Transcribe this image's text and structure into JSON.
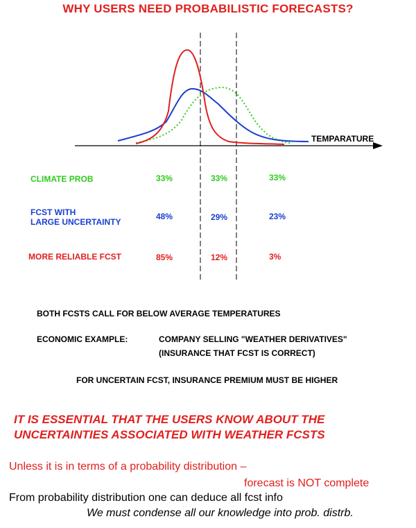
{
  "title": "WHY USERS NEED PROBABILISTIC FORECASTS?",
  "diagram": {
    "axis_label": "TEMPARATURE",
    "curves": [
      {
        "name": "climate",
        "color": "#2ecc1b",
        "style": "dotted"
      },
      {
        "name": "large-uncertainty",
        "color": "#1a3fd0",
        "style": "solid"
      },
      {
        "name": "reliable",
        "color": "#e0201e",
        "style": "solid"
      }
    ]
  },
  "rows": [
    {
      "label": "CLIMATE PROB",
      "values": [
        "33%",
        "33%",
        "33%"
      ]
    },
    {
      "label": "FCST WITH\nLARGE UNCERTAINTY",
      "values": [
        "48%",
        "29%",
        "23%"
      ]
    },
    {
      "label": "MORE RELIABLE FCST",
      "values": [
        "85%",
        "12%",
        "3%"
      ]
    }
  ],
  "notes": {
    "both": "BOTH FCSTS CALL FOR BELOW AVERAGE TEMPERATURES",
    "econ_label": "ECONOMIC EXAMPLE:",
    "econ_line1": "COMPANY SELLING \"WEATHER DERIVATIVES\"",
    "econ_line2": "(INSURANCE THAT FCST IS CORRECT)",
    "uncertain": "FOR UNCERTAIN FCST, INSURANCE PREMIUM MUST BE HIGHER"
  },
  "essential": {
    "line1": "IT IS ESSENTIAL THAT THE USERS KNOW ABOUT THE",
    "line2": "UNCERTAINTIES  ASSOCIATED WITH WEATHER FCSTS"
  },
  "footer": {
    "unless": "Unless it is in terms of a probability distribution –",
    "not_complete": "forecast is NOT complete",
    "deduce": "From probability distribution one can deduce all fcst info",
    "condense": "We must condense all our knowledge into prob. distrb."
  }
}
